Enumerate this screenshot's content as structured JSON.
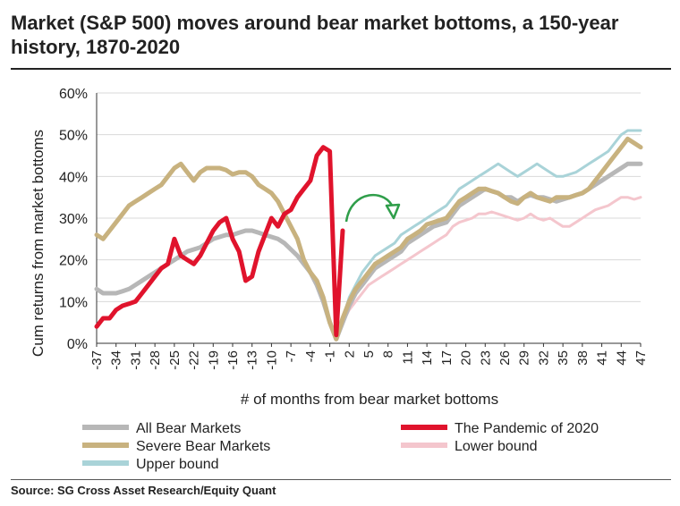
{
  "title": "Market (S&P 500) moves around bear market bottoms, a 150-year history, 1870-2020",
  "source": "Source: SG Cross Asset Research/Equity Quant",
  "chart_data": {
    "type": "line",
    "xlabel": "# of months from bear market bottoms",
    "ylabel": "Cum returns from market bottoms",
    "xlim": [
      -37,
      47
    ],
    "ylim": [
      0,
      60
    ],
    "y_ticks": [
      0,
      10,
      20,
      30,
      40,
      50,
      60
    ],
    "y_tick_suffix": "%",
    "x_ticks": [
      -37,
      -34,
      -31,
      -28,
      -25,
      -22,
      -19,
      -16,
      -13,
      -10,
      -7,
      -4,
      -1,
      2,
      5,
      8,
      11,
      14,
      17,
      20,
      23,
      26,
      29,
      32,
      35,
      38,
      41,
      44,
      47
    ],
    "grid": "horizontal",
    "legend": "bottom",
    "series": [
      {
        "name": "All Bear Markets",
        "color": "#b7b7b7",
        "width": 5,
        "points": [
          [
            -37,
            13
          ],
          [
            -36,
            12
          ],
          [
            -35,
            12
          ],
          [
            -34,
            12
          ],
          [
            -33,
            12.5
          ],
          [
            -32,
            13
          ],
          [
            -31,
            14
          ],
          [
            -30,
            15
          ],
          [
            -29,
            16
          ],
          [
            -28,
            17
          ],
          [
            -27,
            18
          ],
          [
            -26,
            19
          ],
          [
            -25,
            20
          ],
          [
            -24,
            21
          ],
          [
            -23,
            22
          ],
          [
            -22,
            22.5
          ],
          [
            -21,
            23
          ],
          [
            -20,
            24
          ],
          [
            -19,
            25
          ],
          [
            -18,
            25.5
          ],
          [
            -17,
            26
          ],
          [
            -16,
            26
          ],
          [
            -15,
            26.5
          ],
          [
            -14,
            27
          ],
          [
            -13,
            27
          ],
          [
            -12,
            26.5
          ],
          [
            -11,
            26
          ],
          [
            -10,
            25.5
          ],
          [
            -9,
            25
          ],
          [
            -8,
            24
          ],
          [
            -7,
            22.5
          ],
          [
            -6,
            21
          ],
          [
            -5,
            19
          ],
          [
            -4,
            17
          ],
          [
            -3,
            14
          ],
          [
            -2,
            10
          ],
          [
            -1,
            5
          ],
          [
            0,
            1
          ],
          [
            1,
            5
          ],
          [
            2,
            9
          ],
          [
            3,
            12
          ],
          [
            4,
            14
          ],
          [
            5,
            16
          ],
          [
            6,
            18
          ],
          [
            7,
            19
          ],
          [
            8,
            20
          ],
          [
            9,
            21
          ],
          [
            10,
            22
          ],
          [
            11,
            24
          ],
          [
            12,
            25
          ],
          [
            13,
            26
          ],
          [
            14,
            27
          ],
          [
            15,
            28
          ],
          [
            16,
            28.5
          ],
          [
            17,
            29
          ],
          [
            18,
            31
          ],
          [
            19,
            33
          ],
          [
            20,
            34
          ],
          [
            21,
            35
          ],
          [
            22,
            36
          ],
          [
            23,
            37
          ],
          [
            24,
            36.5
          ],
          [
            25,
            36
          ],
          [
            26,
            35
          ],
          [
            27,
            35
          ],
          [
            28,
            34
          ],
          [
            29,
            35
          ],
          [
            30,
            35.5
          ],
          [
            31,
            35
          ],
          [
            32,
            35
          ],
          [
            33,
            34.5
          ],
          [
            34,
            34
          ],
          [
            35,
            34.5
          ],
          [
            36,
            35
          ],
          [
            37,
            35.5
          ],
          [
            38,
            36
          ],
          [
            39,
            37
          ],
          [
            40,
            38
          ],
          [
            41,
            39
          ],
          [
            42,
            40
          ],
          [
            43,
            41
          ],
          [
            44,
            42
          ],
          [
            45,
            43
          ],
          [
            46,
            43
          ],
          [
            47,
            43
          ]
        ]
      },
      {
        "name": "Severe Bear Markets",
        "color": "#c8b27f",
        "width": 5,
        "points": [
          [
            -37,
            26
          ],
          [
            -36,
            25
          ],
          [
            -35,
            27
          ],
          [
            -34,
            29
          ],
          [
            -33,
            31
          ],
          [
            -32,
            33
          ],
          [
            -31,
            34
          ],
          [
            -30,
            35
          ],
          [
            -29,
            36
          ],
          [
            -28,
            37
          ],
          [
            -27,
            38
          ],
          [
            -26,
            40
          ],
          [
            -25,
            42
          ],
          [
            -24,
            43
          ],
          [
            -23,
            41
          ],
          [
            -22,
            39
          ],
          [
            -21,
            41
          ],
          [
            -20,
            42
          ],
          [
            -19,
            42
          ],
          [
            -18,
            42
          ],
          [
            -17,
            41.5
          ],
          [
            -16,
            40.5
          ],
          [
            -15,
            41
          ],
          [
            -14,
            41
          ],
          [
            -13,
            40
          ],
          [
            -12,
            38
          ],
          [
            -11,
            37
          ],
          [
            -10,
            36
          ],
          [
            -9,
            34
          ],
          [
            -8,
            31
          ],
          [
            -7,
            28
          ],
          [
            -6,
            25
          ],
          [
            -5,
            20
          ],
          [
            -4,
            17
          ],
          [
            -3,
            15
          ],
          [
            -2,
            11
          ],
          [
            -1,
            5
          ],
          [
            0,
            1
          ],
          [
            1,
            6
          ],
          [
            2,
            10
          ],
          [
            3,
            13
          ],
          [
            4,
            15
          ],
          [
            5,
            17
          ],
          [
            6,
            19
          ],
          [
            7,
            20
          ],
          [
            8,
            21
          ],
          [
            9,
            22
          ],
          [
            10,
            23
          ],
          [
            11,
            25
          ],
          [
            12,
            26
          ],
          [
            13,
            27
          ],
          [
            14,
            28.5
          ],
          [
            15,
            29
          ],
          [
            16,
            29.5
          ],
          [
            17,
            30
          ],
          [
            18,
            32
          ],
          [
            19,
            34
          ],
          [
            20,
            35
          ],
          [
            21,
            36
          ],
          [
            22,
            37
          ],
          [
            23,
            37
          ],
          [
            24,
            36.5
          ],
          [
            25,
            36
          ],
          [
            26,
            35
          ],
          [
            27,
            34
          ],
          [
            28,
            33.5
          ],
          [
            29,
            35
          ],
          [
            30,
            36
          ],
          [
            31,
            35
          ],
          [
            32,
            34.5
          ],
          [
            33,
            34
          ],
          [
            34,
            35
          ],
          [
            35,
            35
          ],
          [
            36,
            35
          ],
          [
            37,
            35.5
          ],
          [
            38,
            36
          ],
          [
            39,
            37
          ],
          [
            40,
            39
          ],
          [
            41,
            41
          ],
          [
            42,
            43
          ],
          [
            43,
            45
          ],
          [
            44,
            47
          ],
          [
            45,
            49
          ],
          [
            46,
            48
          ],
          [
            47,
            47
          ]
        ]
      },
      {
        "name": "The Pandemic of 2020",
        "color": "#e0132c",
        "width": 5,
        "points": [
          [
            -37,
            4
          ],
          [
            -36,
            6
          ],
          [
            -35,
            6
          ],
          [
            -34,
            8
          ],
          [
            -33,
            9
          ],
          [
            -32,
            9.5
          ],
          [
            -31,
            10
          ],
          [
            -30,
            12
          ],
          [
            -29,
            14
          ],
          [
            -28,
            16
          ],
          [
            -27,
            18
          ],
          [
            -26,
            19
          ],
          [
            -25,
            25
          ],
          [
            -24,
            21
          ],
          [
            -23,
            20
          ],
          [
            -22,
            19
          ],
          [
            -21,
            21
          ],
          [
            -20,
            24
          ],
          [
            -19,
            27
          ],
          [
            -18,
            29
          ],
          [
            -17,
            30
          ],
          [
            -16,
            25
          ],
          [
            -15,
            22
          ],
          [
            -14,
            15
          ],
          [
            -13,
            16
          ],
          [
            -12,
            22
          ],
          [
            -11,
            26
          ],
          [
            -10,
            30
          ],
          [
            -9,
            28
          ],
          [
            -8,
            31
          ],
          [
            -7,
            32
          ],
          [
            -6,
            35
          ],
          [
            -5,
            37
          ],
          [
            -4,
            39
          ],
          [
            -3,
            45
          ],
          [
            -2,
            47
          ],
          [
            -1,
            46
          ],
          [
            0,
            2
          ],
          [
            1,
            27
          ]
        ]
      },
      {
        "name": "Lower bound",
        "color": "#f4c6cd",
        "width": 3,
        "points": [
          [
            0,
            1
          ],
          [
            1,
            5
          ],
          [
            2,
            8
          ],
          [
            3,
            10
          ],
          [
            4,
            12
          ],
          [
            5,
            14
          ],
          [
            6,
            15
          ],
          [
            7,
            16
          ],
          [
            8,
            17
          ],
          [
            9,
            18
          ],
          [
            10,
            19
          ],
          [
            11,
            20
          ],
          [
            12,
            21
          ],
          [
            13,
            22
          ],
          [
            14,
            23
          ],
          [
            15,
            24
          ],
          [
            16,
            25
          ],
          [
            17,
            26
          ],
          [
            18,
            28
          ],
          [
            19,
            29
          ],
          [
            20,
            29.5
          ],
          [
            21,
            30
          ],
          [
            22,
            31
          ],
          [
            23,
            31
          ],
          [
            24,
            31.5
          ],
          [
            25,
            31
          ],
          [
            26,
            30.5
          ],
          [
            27,
            30
          ],
          [
            28,
            29.5
          ],
          [
            29,
            30
          ],
          [
            30,
            31
          ],
          [
            31,
            30
          ],
          [
            32,
            29.5
          ],
          [
            33,
            30
          ],
          [
            34,
            29
          ],
          [
            35,
            28
          ],
          [
            36,
            28
          ],
          [
            37,
            29
          ],
          [
            38,
            30
          ],
          [
            39,
            31
          ],
          [
            40,
            32
          ],
          [
            41,
            32.5
          ],
          [
            42,
            33
          ],
          [
            43,
            34
          ],
          [
            44,
            35
          ],
          [
            45,
            35
          ],
          [
            46,
            34.5
          ],
          [
            47,
            35
          ]
        ]
      },
      {
        "name": "Upper bound",
        "color": "#a9d3d8",
        "width": 3,
        "points": [
          [
            0,
            1
          ],
          [
            1,
            6
          ],
          [
            2,
            11
          ],
          [
            3,
            14
          ],
          [
            4,
            17
          ],
          [
            5,
            19
          ],
          [
            6,
            21
          ],
          [
            7,
            22
          ],
          [
            8,
            23
          ],
          [
            9,
            24
          ],
          [
            10,
            26
          ],
          [
            11,
            27
          ],
          [
            12,
            28
          ],
          [
            13,
            29
          ],
          [
            14,
            30
          ],
          [
            15,
            31
          ],
          [
            16,
            32
          ],
          [
            17,
            33
          ],
          [
            18,
            35
          ],
          [
            19,
            37
          ],
          [
            20,
            38
          ],
          [
            21,
            39
          ],
          [
            22,
            40
          ],
          [
            23,
            41
          ],
          [
            24,
            42
          ],
          [
            25,
            43
          ],
          [
            26,
            42
          ],
          [
            27,
            41
          ],
          [
            28,
            40
          ],
          [
            29,
            41
          ],
          [
            30,
            42
          ],
          [
            31,
            43
          ],
          [
            32,
            42
          ],
          [
            33,
            41
          ],
          [
            34,
            40
          ],
          [
            35,
            40
          ],
          [
            36,
            40.5
          ],
          [
            37,
            41
          ],
          [
            38,
            42
          ],
          [
            39,
            43
          ],
          [
            40,
            44
          ],
          [
            41,
            45
          ],
          [
            42,
            46
          ],
          [
            43,
            48
          ],
          [
            44,
            50
          ],
          [
            45,
            51
          ],
          [
            46,
            51
          ],
          [
            47,
            51
          ]
        ]
      }
    ]
  }
}
